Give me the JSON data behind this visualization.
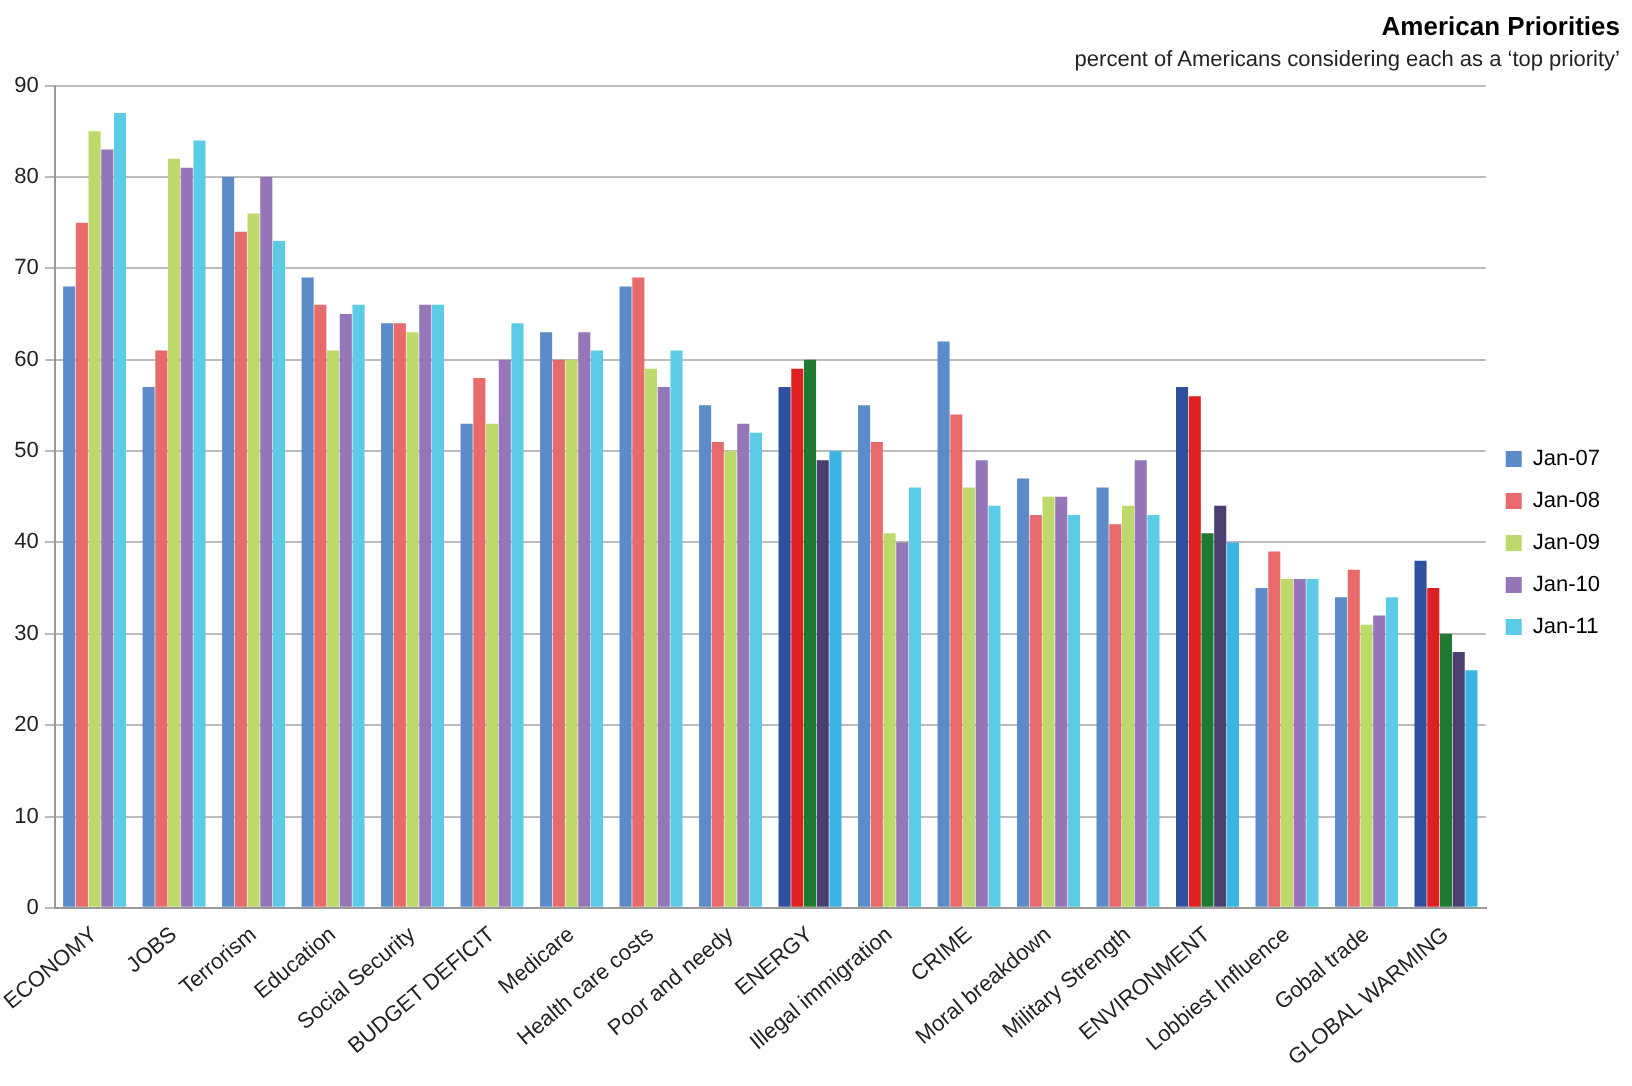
{
  "chart_data": {
    "type": "bar",
    "title": "American Priorities",
    "subtitle": "percent of Americans considering each as a ‘top priority’",
    "categories": [
      "ECONOMY",
      "JOBS",
      "Terrorism",
      "Education",
      "Social Security",
      "BUDGET DEFICIT",
      "Medicare",
      "Health care costs",
      "Poor and needy",
      "ENERGY",
      "Illegal immigration",
      "CRIME",
      "Moral breakdown",
      "Military Strength",
      "ENVIRONMENT",
      "Lobbiest Influence",
      "Gobal trade",
      "GLOBAL WARMING"
    ],
    "series": [
      {
        "name": "Jan-07",
        "color": "#5b8bc9",
        "colors": [
          "#5b8bc9",
          "#5b8bc9",
          "#5b8bc9",
          "#5b8bc9",
          "#5b8bc9",
          "#5b8bc9",
          "#5b8bc9",
          "#5b8bc9",
          "#5b8bc9",
          "#2f4f9f",
          "#5b8bc9",
          "#5b8bc9",
          "#5b8bc9",
          "#5b8bc9",
          "#2f4f9f",
          "#5b8bc9",
          "#5b8bc9",
          "#2f4f9f"
        ],
        "values": [
          68,
          57,
          80,
          69,
          64,
          53,
          63,
          68,
          55,
          57,
          55,
          62,
          47,
          46,
          57,
          35,
          34,
          38
        ]
      },
      {
        "name": "Jan-08",
        "color": "#e86a6a",
        "colors": [
          "#e86a6a",
          "#e86a6a",
          "#e86a6a",
          "#e86a6a",
          "#e86a6a",
          "#e86a6a",
          "#e86a6a",
          "#e86a6a",
          "#e86a6a",
          "#e02020",
          "#e86a6a",
          "#e86a6a",
          "#e86a6a",
          "#e86a6a",
          "#e02020",
          "#e86a6a",
          "#e86a6a",
          "#e02020"
        ],
        "values": [
          75,
          61,
          74,
          66,
          64,
          58,
          60,
          69,
          51,
          59,
          51,
          54,
          43,
          42,
          56,
          39,
          37,
          35
        ]
      },
      {
        "name": "Jan-09",
        "color": "#bcd96a",
        "colors": [
          "#bcd96a",
          "#bcd96a",
          "#bcd96a",
          "#bcd96a",
          "#bcd96a",
          "#bcd96a",
          "#bcd96a",
          "#bcd96a",
          "#bcd96a",
          "#1e7a30",
          "#bcd96a",
          "#bcd96a",
          "#bcd96a",
          "#bcd96a",
          "#1e7a30",
          "#bcd96a",
          "#bcd96a",
          "#1e7a30"
        ],
        "values": [
          85,
          82,
          76,
          61,
          63,
          53,
          60,
          59,
          50,
          60,
          41,
          46,
          45,
          44,
          41,
          36,
          31,
          30
        ]
      },
      {
        "name": "Jan-10",
        "color": "#9576b8",
        "colors": [
          "#9576b8",
          "#9576b8",
          "#9576b8",
          "#9576b8",
          "#9576b8",
          "#9576b8",
          "#9576b8",
          "#9576b8",
          "#9576b8",
          "#4a3f6e",
          "#9576b8",
          "#9576b8",
          "#9576b8",
          "#9576b8",
          "#4a3f6e",
          "#9576b8",
          "#9576b8",
          "#4a3f6e"
        ],
        "values": [
          83,
          81,
          80,
          65,
          66,
          60,
          63,
          57,
          53,
          49,
          40,
          49,
          45,
          49,
          44,
          36,
          32,
          28
        ]
      },
      {
        "name": "Jan-11",
        "color": "#5ccbe6",
        "colors": [
          "#5ccbe6",
          "#5ccbe6",
          "#5ccbe6",
          "#5ccbe6",
          "#5ccbe6",
          "#5ccbe6",
          "#5ccbe6",
          "#5ccbe6",
          "#5ccbe6",
          "#3ab4e4",
          "#5ccbe6",
          "#5ccbe6",
          "#5ccbe6",
          "#5ccbe6",
          "#3ab4e4",
          "#5ccbe6",
          "#5ccbe6",
          "#3ab4e4"
        ],
        "values": [
          87,
          84,
          73,
          66,
          66,
          64,
          61,
          61,
          52,
          50,
          46,
          44,
          43,
          43,
          40,
          36,
          34,
          26
        ]
      }
    ],
    "ylim": [
      0,
      90
    ],
    "yticks": [
      0,
      10,
      20,
      30,
      40,
      50,
      60,
      70,
      80,
      90
    ],
    "grid": "y",
    "legend": "right"
  }
}
